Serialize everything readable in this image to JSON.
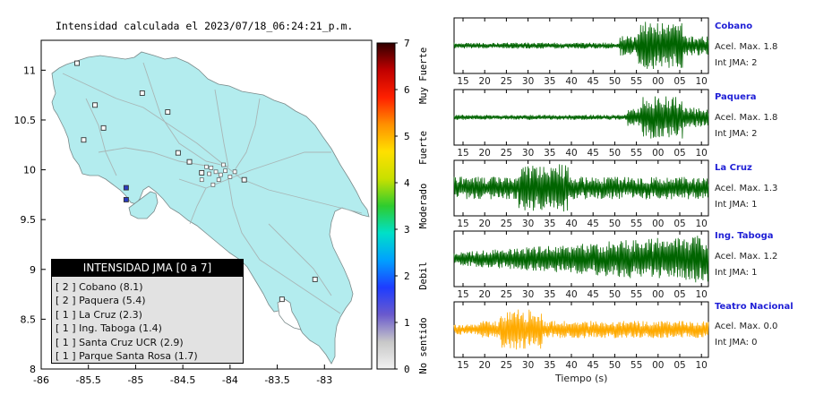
{
  "map": {
    "title": "Intensidad calculada el 2023/07/18_06:24:21_p.m.",
    "x_ticks": [
      "-86",
      "-85.5",
      "-85",
      "-84.5",
      "-84",
      "-83.5",
      "-83"
    ],
    "y_ticks": [
      "11",
      "10.5",
      "10",
      "9.5",
      "9",
      "8.5",
      "8"
    ],
    "xlim": [
      -86,
      -82.5
    ],
    "ylim": [
      8,
      11.3
    ]
  },
  "colorbar": {
    "ticks": [
      "0",
      "1",
      "2",
      "3",
      "4",
      "5",
      "6",
      "7"
    ],
    "category_labels": [
      "No sentido",
      "Debil",
      "Moderado",
      "Fuerte",
      "Muy Fuerte"
    ],
    "colors": [
      "#f2f2f2",
      "#c8c8c8",
      "#6a5acd",
      "#1e3cff",
      "#00a0ff",
      "#00e0c8",
      "#2ecc2e",
      "#c8e000",
      "#ffe000",
      "#ff9000",
      "#ff2000",
      "#c00000",
      "#300000"
    ]
  },
  "legend": {
    "title": "INTENSIDAD JMA [0 a 7]",
    "items": [
      "[ 2 ]  Cobano (8.1)",
      "[ 2 ]  Paquera (5.4)",
      "[ 1 ]  La Cruz (2.3)",
      "[ 1 ]  Ing. Taboga (1.4)",
      "[ 1 ]  Santa Cruz UCR (2.9)",
      "[ 1 ]  Parque Santa Rosa (1.7)"
    ]
  },
  "panels": {
    "x_ticks": [
      "15",
      "20",
      "25",
      "30",
      "35",
      "40",
      "45",
      "50",
      "55",
      "00",
      "05",
      "10"
    ],
    "x_title": "Tiempo (s)",
    "stations": [
      {
        "name": "Cobano",
        "accel": "Acel. Max. 1.8",
        "jma": "Int JMA: 2",
        "color": "#006400"
      },
      {
        "name": "Paquera",
        "accel": "Acel. Max. 1.8",
        "jma": "Int JMA: 2",
        "color": "#006400"
      },
      {
        "name": "La Cruz",
        "accel": "Acel. Max. 1.3",
        "jma": "Int JMA: 1",
        "color": "#006400"
      },
      {
        "name": "Ing. Taboga",
        "accel": "Acel. Max. 1.2",
        "jma": "Int JMA: 1",
        "color": "#006400"
      },
      {
        "name": "Teatro Nacional",
        "accel": "Acel. Max. 0.0",
        "jma": "Int JMA: 0",
        "color": "#ffaa00"
      }
    ]
  },
  "chart_data": [
    {
      "type": "scatter",
      "title": "Intensidad calculada el 2023/07/18_06:24:21_p.m.",
      "xlim": [
        -86,
        -82.5
      ],
      "ylim": [
        8,
        11.3
      ],
      "colorbar_range": [
        0,
        7
      ],
      "station_markers_sample": [
        {
          "x": -85.62,
          "y": 11.07,
          "intensity": 1
        },
        {
          "x": -85.43,
          "y": 10.65,
          "intensity": 1
        },
        {
          "x": -85.55,
          "y": 10.3,
          "intensity": 1
        },
        {
          "x": -85.34,
          "y": 10.42,
          "intensity": 1
        },
        {
          "x": -84.93,
          "y": 10.77,
          "intensity": 1
        },
        {
          "x": -84.66,
          "y": 10.58,
          "intensity": 1
        },
        {
          "x": -84.55,
          "y": 10.17,
          "intensity": 1
        },
        {
          "x": -85.1,
          "y": 9.82,
          "intensity": 2
        },
        {
          "x": -85.1,
          "y": 9.7,
          "intensity": 2
        },
        {
          "x": -84.43,
          "y": 10.08,
          "intensity": 1
        },
        {
          "x": -84.3,
          "y": 9.97,
          "intensity": 1
        },
        {
          "x": -83.85,
          "y": 9.9,
          "intensity": 1
        },
        {
          "x": -83.1,
          "y": 8.9,
          "intensity": 1
        },
        {
          "x": -83.45,
          "y": 8.7,
          "intensity": 1
        }
      ]
    },
    {
      "type": "line",
      "xlabel": "Tiempo (s)",
      "series": [
        {
          "name": "Cobano",
          "peak_accel": 1.8,
          "jma": 2
        },
        {
          "name": "Paquera",
          "peak_accel": 1.8,
          "jma": 2
        },
        {
          "name": "La Cruz",
          "peak_accel": 1.3,
          "jma": 1
        },
        {
          "name": "Ing. Taboga",
          "peak_accel": 1.2,
          "jma": 1
        },
        {
          "name": "Teatro Nacional",
          "peak_accel": 0.0,
          "jma": 0
        }
      ]
    }
  ]
}
